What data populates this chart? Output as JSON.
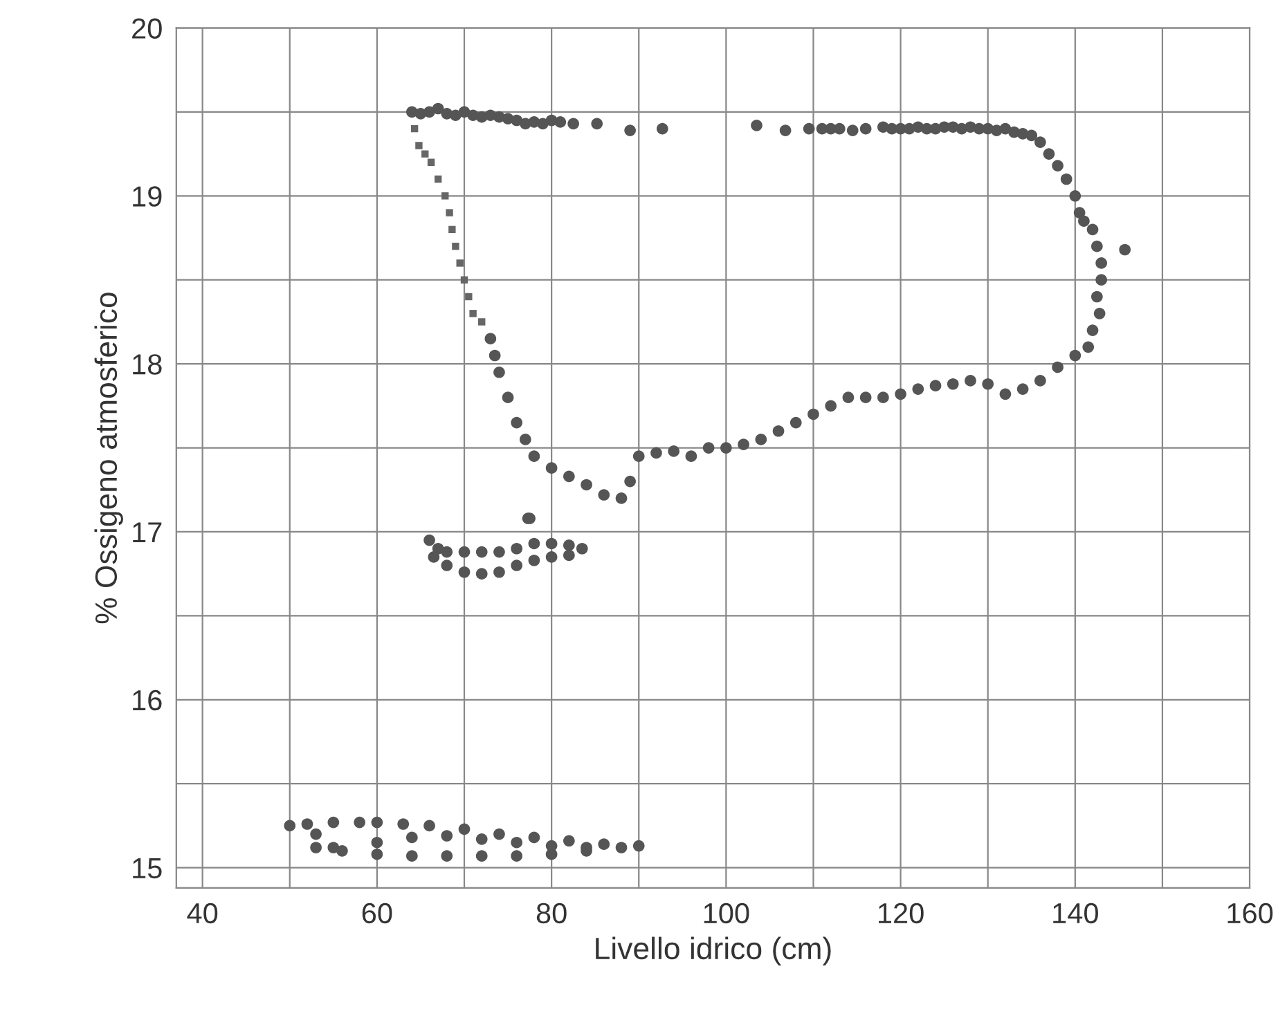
{
  "chart_data": {
    "type": "scatter",
    "xlabel": "Livello idrico (cm)",
    "ylabel": "% Ossigeno atmosferico",
    "xlim": [
      37,
      160
    ],
    "ylim": [
      14.88,
      20
    ],
    "xticks": [
      40,
      {
        "value": 50,
        "label": null
      },
      60,
      {
        "value": 70,
        "label": null
      },
      80,
      {
        "value": 90,
        "label": null
      },
      100,
      {
        "value": 110,
        "label": null
      },
      120,
      {
        "value": 130,
        "label": null
      },
      140,
      {
        "value": 150,
        "label": null
      },
      160
    ],
    "yticks": [
      15,
      {
        "value": 15.5,
        "label": null
      },
      16,
      {
        "value": 16.5,
        "label": null
      },
      17,
      {
        "value": 17.5,
        "label": null
      },
      18,
      {
        "value": 18.5,
        "label": null
      },
      19,
      {
        "value": 19.5,
        "label": null
      },
      20
    ],
    "grid": true,
    "series": [
      {
        "color": "#555555",
        "marker": "circle",
        "x": [
          64,
          65,
          66,
          67,
          68,
          69,
          70,
          71,
          72,
          73,
          74,
          75,
          76,
          77,
          78,
          79,
          80,
          81,
          82.5,
          85.2,
          89,
          92.7,
          103.5,
          106.8,
          109.5,
          111,
          112,
          113,
          114.5,
          116,
          118,
          119,
          120,
          121,
          122,
          123,
          124,
          125,
          126,
          127,
          128,
          129,
          130,
          131,
          132,
          133,
          134,
          135,
          136,
          137,
          138,
          139,
          140,
          140.5,
          141,
          142,
          142.5,
          143,
          143,
          142.5,
          142.8,
          142,
          141.5,
          145.7,
          140,
          138,
          136,
          134,
          132,
          130,
          128,
          126,
          124,
          122,
          120,
          118,
          116,
          114,
          112,
          110,
          108,
          106,
          104,
          102,
          100,
          98,
          96,
          94,
          92,
          90,
          89,
          88,
          86,
          84,
          82,
          80,
          78,
          77,
          76,
          75,
          74,
          73.5,
          73,
          77.3,
          66,
          67,
          68,
          70,
          72,
          74,
          76,
          78,
          80,
          82,
          83.5,
          82,
          80,
          78,
          76,
          74,
          72,
          70,
          68,
          66.5,
          77.5,
          50,
          52,
          55,
          58,
          60,
          63,
          66,
          70,
          74,
          78,
          82,
          86,
          90,
          88,
          84,
          80,
          76,
          72,
          68,
          64,
          60,
          56,
          53,
          53,
          55,
          60,
          64,
          68,
          72,
          76,
          80,
          84
        ],
        "values": [
          19.5,
          19.49,
          19.5,
          19.52,
          19.49,
          19.48,
          19.5,
          19.48,
          19.47,
          19.48,
          19.47,
          19.46,
          19.45,
          19.43,
          19.44,
          19.43,
          19.45,
          19.44,
          19.43,
          19.43,
          19.39,
          19.4,
          19.42,
          19.39,
          19.4,
          19.4,
          19.4,
          19.4,
          19.39,
          19.4,
          19.41,
          19.4,
          19.4,
          19.4,
          19.41,
          19.4,
          19.4,
          19.41,
          19.41,
          19.4,
          19.41,
          19.4,
          19.4,
          19.39,
          19.4,
          19.38,
          19.37,
          19.36,
          19.32,
          19.25,
          19.18,
          19.1,
          19.0,
          18.9,
          18.85,
          18.8,
          18.7,
          18.6,
          18.5,
          18.4,
          18.3,
          18.2,
          18.1,
          18.68,
          18.05,
          17.98,
          17.9,
          17.85,
          17.82,
          17.88,
          17.9,
          17.88,
          17.87,
          17.85,
          17.82,
          17.8,
          17.8,
          17.8,
          17.75,
          17.7,
          17.65,
          17.6,
          17.55,
          17.52,
          17.5,
          17.5,
          17.45,
          17.48,
          17.47,
          17.45,
          17.3,
          17.2,
          17.22,
          17.28,
          17.33,
          17.38,
          17.45,
          17.55,
          17.65,
          17.8,
          17.95,
          18.05,
          18.15,
          17.08,
          16.95,
          16.9,
          16.88,
          16.88,
          16.88,
          16.88,
          16.9,
          16.93,
          16.93,
          16.92,
          16.9,
          16.86,
          16.85,
          16.83,
          16.8,
          16.76,
          16.75,
          16.76,
          16.8,
          16.85,
          17.08,
          15.25,
          15.26,
          15.27,
          15.27,
          15.27,
          15.26,
          15.25,
          15.23,
          15.2,
          15.18,
          15.16,
          15.14,
          15.13,
          15.12,
          15.1,
          15.08,
          15.07,
          15.07,
          15.07,
          15.07,
          15.08,
          15.1,
          15.12,
          15.2,
          15.12,
          15.15,
          15.18,
          15.19,
          15.17,
          15.15,
          15.13,
          15.12
        ]
      },
      {
        "color": "#666666",
        "marker": "square",
        "x": [
          64.3,
          64.8,
          65.5,
          66.2,
          67,
          67.8,
          68.3,
          68.6,
          69,
          69.5,
          70,
          70.5,
          71,
          72
        ],
        "values": [
          19.4,
          19.3,
          19.25,
          19.2,
          19.1,
          19.0,
          18.9,
          18.8,
          18.7,
          18.6,
          18.5,
          18.4,
          18.3,
          18.25
        ]
      }
    ]
  }
}
